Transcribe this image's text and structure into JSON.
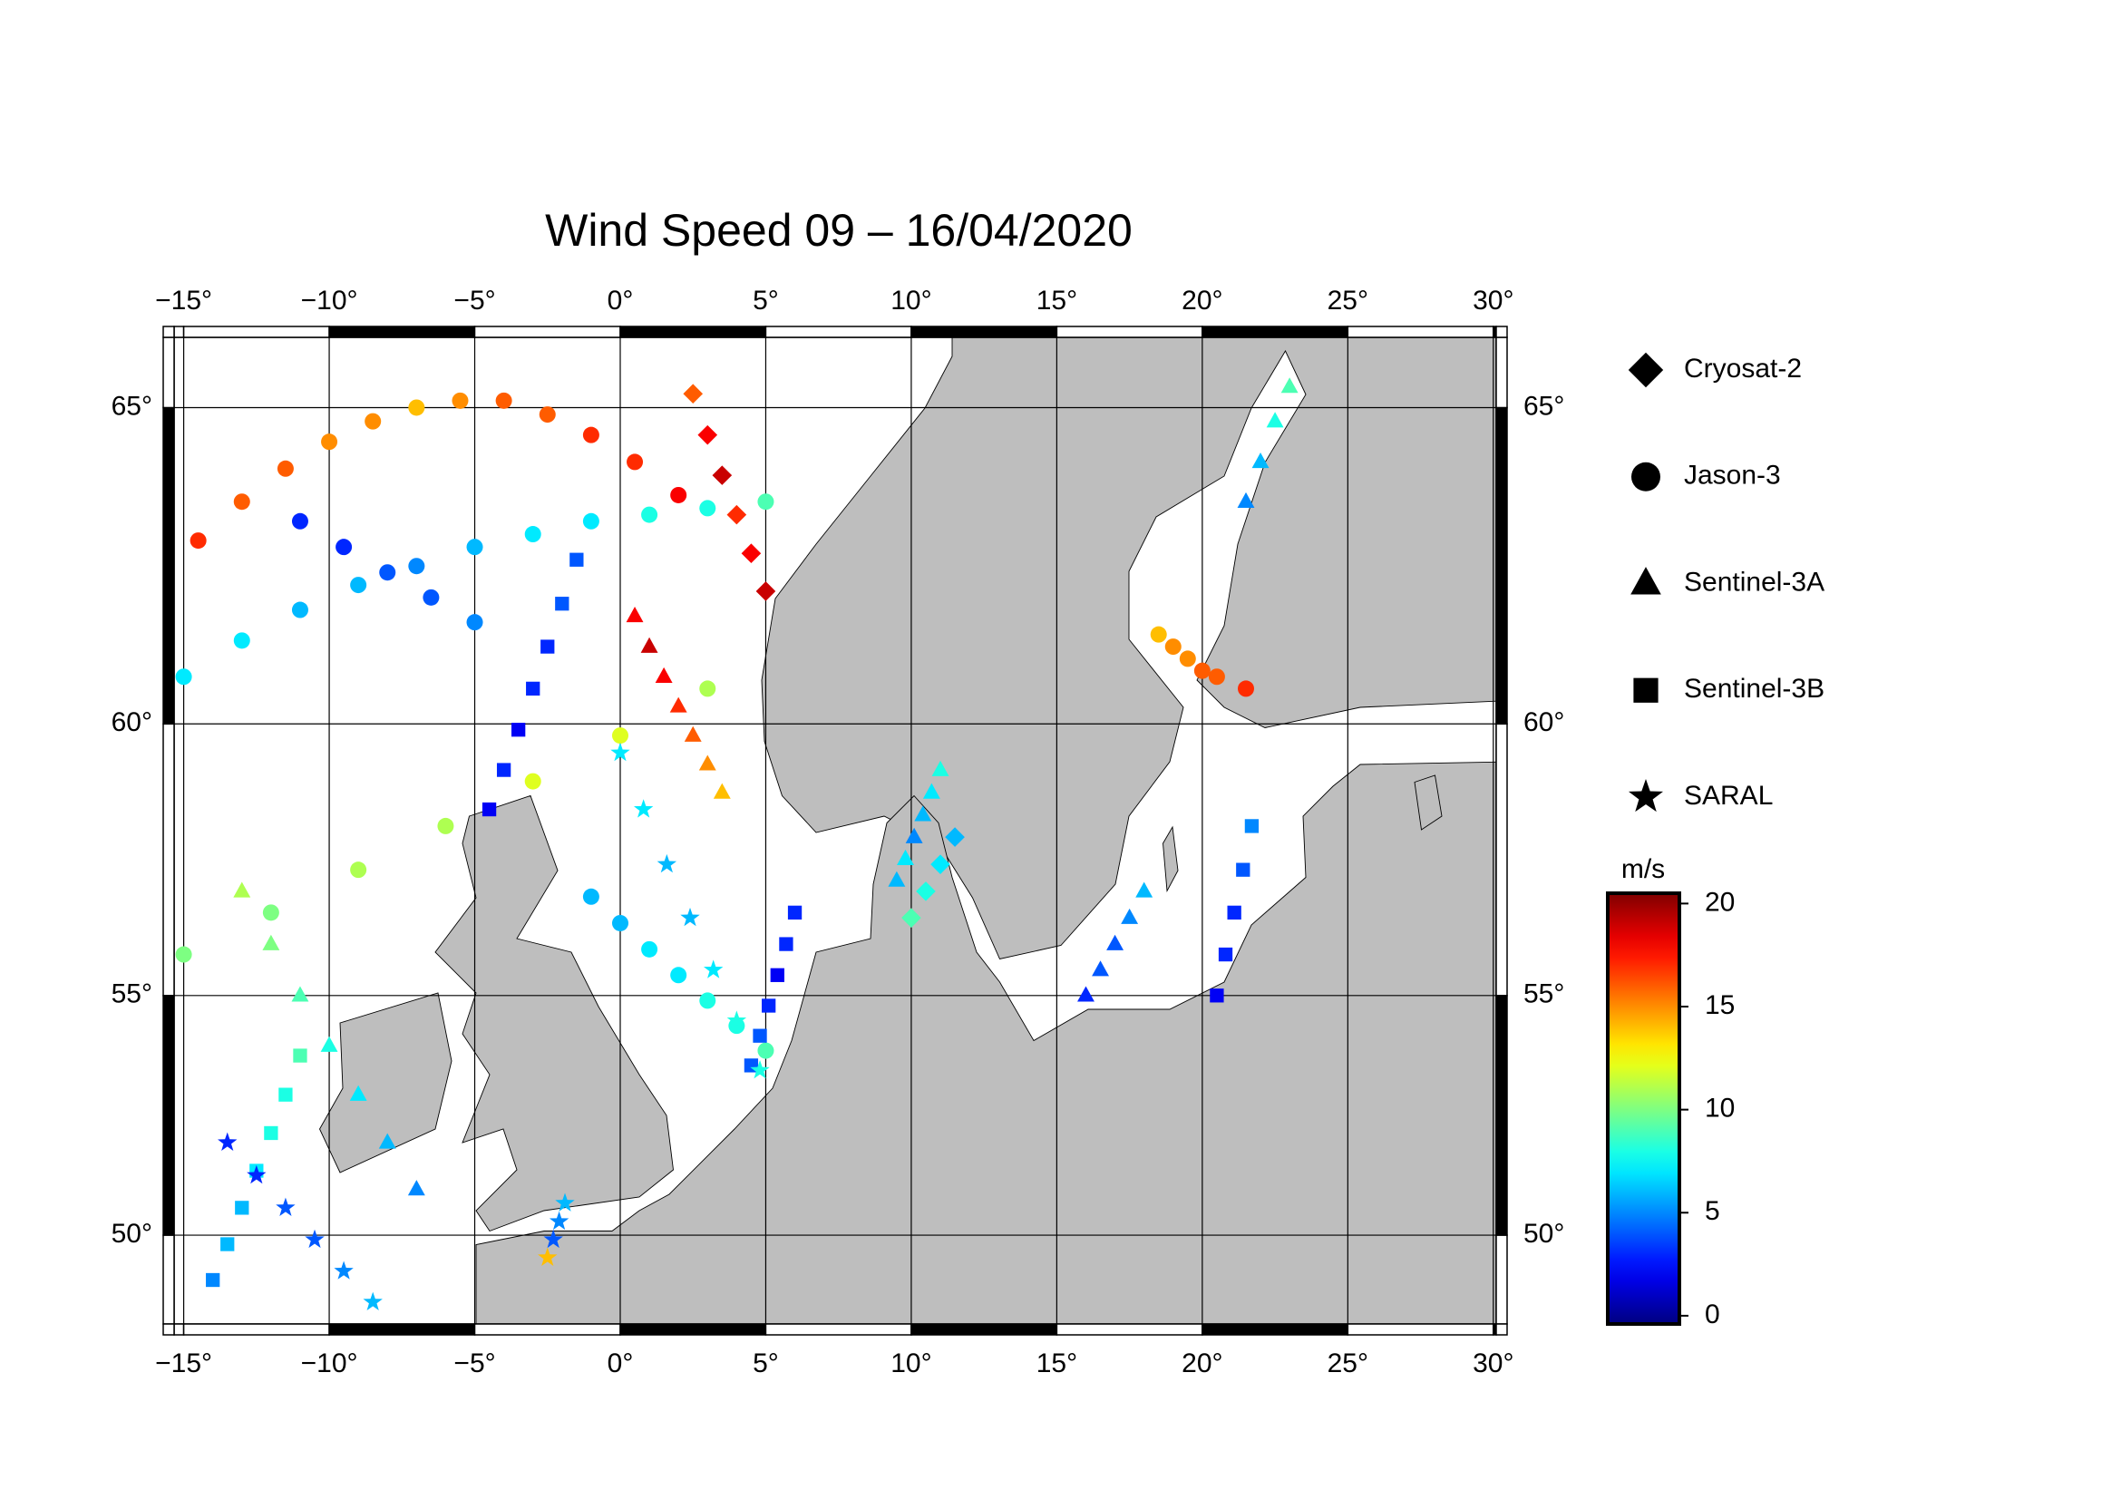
{
  "chart_data": {
    "type": "map",
    "title": "Wind Speed 09 – 16/04/2020",
    "projection": "mercator",
    "xlim": [
      -15.33,
      30.1
    ],
    "ylim": [
      48,
      66
    ],
    "xticks": [
      {
        "value": -15,
        "label": "−15°"
      },
      {
        "value": -10,
        "label": "−10°"
      },
      {
        "value": -5,
        "label": "−5°"
      },
      {
        "value": 0,
        "label": "0°"
      },
      {
        "value": 5,
        "label": "5°"
      },
      {
        "value": 10,
        "label": "10°"
      },
      {
        "value": 15,
        "label": "15°"
      },
      {
        "value": 20,
        "label": "20°"
      },
      {
        "value": 25,
        "label": "25°"
      },
      {
        "value": 30,
        "label": "30°"
      }
    ],
    "yticks": [
      {
        "value": 50,
        "label": "50°"
      },
      {
        "value": 55,
        "label": "55°"
      },
      {
        "value": 60,
        "label": "60°"
      },
      {
        "value": 65,
        "label": "65°"
      }
    ],
    "grid": true,
    "colormap": "jet",
    "colorbar": {
      "label": "m/s",
      "lim": [
        -0.4,
        20.5
      ],
      "ticks": [
        0,
        5,
        10,
        15,
        20
      ]
    },
    "series": [
      {
        "name": "Cryosat-2",
        "marker": "diamond",
        "tracks": [
          {
            "lon": [
              2.5,
              3,
              3.5,
              4,
              4.5,
              5
            ],
            "lat": [
              65.2,
              64.6,
              64.0,
              63.4,
              62.8,
              62.2
            ],
            "values": [
              16,
              18,
              19,
              17,
              18,
              19
            ]
          },
          {
            "lon": [
              10,
              10.5,
              11,
              11.5
            ],
            "lat": [
              56.5,
              57,
              57.5,
              58
            ],
            "values": [
              9,
              8,
              7,
              6
            ]
          }
        ]
      },
      {
        "name": "Jason-3",
        "marker": "circle",
        "tracks": [
          {
            "lon": [
              -14.5,
              -13,
              -11.5,
              -10,
              -8.5,
              -7,
              -5.5,
              -4,
              -2.5,
              -1,
              0.5,
              2
            ],
            "lat": [
              63.0,
              63.6,
              64.1,
              64.5,
              64.8,
              65.0,
              65.1,
              65.1,
              64.9,
              64.6,
              64.2,
              63.7
            ],
            "values": [
              17,
              16,
              16,
              15,
              15,
              14,
              15,
              16,
              16,
              17,
              17,
              18
            ]
          },
          {
            "lon": [
              -15,
              -13,
              -11,
              -9,
              -7,
              -5,
              -3,
              -1,
              1,
              3,
              5
            ],
            "lat": [
              60.8,
              61.4,
              61.9,
              62.3,
              62.6,
              62.9,
              63.1,
              63.3,
              63.4,
              63.5,
              63.6
            ],
            "values": [
              7,
              7,
              6,
              6,
              5,
              6,
              7,
              7,
              8,
              8,
              9
            ]
          },
          {
            "lon": [
              -15,
              -12,
              -9,
              -6,
              -3,
              0,
              3
            ],
            "lat": [
              55.8,
              56.6,
              57.4,
              58.2,
              59.0,
              59.8,
              60.6
            ],
            "values": [
              10,
              10,
              11,
              11,
              12,
              12,
              11
            ]
          },
          {
            "lon": [
              -11,
              -9.5,
              -8,
              -6.5,
              -5
            ],
            "lat": [
              63.3,
              62.9,
              62.5,
              62.1,
              61.7
            ],
            "values": [
              3,
              3,
              4,
              4,
              5
            ]
          },
          {
            "lon": [
              18.5,
              19,
              19.5,
              20,
              20.5,
              21.5
            ],
            "lat": [
              61.5,
              61.3,
              61.1,
              60.9,
              60.8,
              60.6
            ],
            "values": [
              14,
              15,
              15,
              16,
              16,
              17
            ]
          },
          {
            "lon": [
              -1,
              0,
              1,
              2,
              3,
              4,
              5
            ],
            "lat": [
              56.9,
              56.4,
              55.9,
              55.4,
              54.9,
              54.4,
              53.9
            ],
            "values": [
              6,
              6,
              7,
              7,
              8,
              8,
              9
            ]
          }
        ]
      },
      {
        "name": "Sentinel-3A",
        "marker": "triangle",
        "tracks": [
          {
            "lon": [
              0.5,
              1,
              1.5,
              2,
              2.5,
              3,
              3.5
            ],
            "lat": [
              61.8,
              61.3,
              60.8,
              60.3,
              59.8,
              59.3,
              58.8
            ],
            "values": [
              18,
              19,
              18,
              17,
              16,
              15,
              14
            ]
          },
          {
            "lon": [
              -13,
              -12,
              -11,
              -10,
              -9,
              -8,
              -7
            ],
            "lat": [
              57,
              56,
              55,
              54,
              53,
              52,
              51
            ],
            "values": [
              11,
              10,
              9,
              8,
              7,
              6,
              5
            ]
          },
          {
            "lon": [
              9.5,
              9.8,
              10.1,
              10.4,
              10.7,
              11
            ],
            "lat": [
              57.2,
              57.6,
              58,
              58.4,
              58.8,
              59.2
            ],
            "values": [
              6,
              7,
              5,
              6,
              7,
              8
            ]
          },
          {
            "lon": [
              16,
              16.5,
              17,
              17.5,
              18
            ],
            "lat": [
              55,
              55.5,
              56,
              56.5,
              57
            ],
            "values": [
              3,
              4,
              4,
              5,
              6
            ]
          },
          {
            "lon": [
              21.5,
              22,
              22.5,
              23
            ],
            "lat": [
              63.6,
              64.2,
              64.8,
              65.3
            ],
            "values": [
              5,
              6,
              8,
              9
            ]
          }
        ]
      },
      {
        "name": "Sentinel-3B",
        "marker": "square",
        "tracks": [
          {
            "lon": [
              -4.5,
              -4,
              -3.5,
              -3,
              -2.5,
              -2,
              -1.5
            ],
            "lat": [
              58.5,
              59.2,
              59.9,
              60.6,
              61.3,
              62,
              62.7
            ],
            "values": [
              2,
              3,
              2,
              3,
              3,
              4,
              4
            ]
          },
          {
            "lon": [
              6,
              5.7,
              5.4,
              5.1,
              4.8,
              4.5
            ],
            "lat": [
              56.6,
              56,
              55.4,
              54.8,
              54.2,
              53.6
            ],
            "values": [
              3,
              3,
              2,
              3,
              4,
              4
            ]
          },
          {
            "lon": [
              -14,
              -13.5,
              -13,
              -12.5,
              -12,
              -11.5,
              -11
            ],
            "lat": [
              49,
              49.8,
              50.6,
              51.4,
              52.2,
              53,
              53.8
            ],
            "values": [
              5,
              6,
              6,
              7,
              8,
              8,
              9
            ]
          },
          {
            "lon": [
              20.5,
              20.8,
              21.1,
              21.4,
              21.7
            ],
            "lat": [
              55,
              55.8,
              56.6,
              57.4,
              58.2
            ],
            "values": [
              2,
              3,
              3,
              4,
              5
            ]
          }
        ]
      },
      {
        "name": "SARAL",
        "marker": "star",
        "tracks": [
          {
            "lon": [
              0,
              0.8,
              1.6,
              2.4,
              3.2,
              4,
              4.8
            ],
            "lat": [
              59.5,
              58.5,
              57.5,
              56.5,
              55.5,
              54.5,
              53.5
            ],
            "values": [
              7,
              7,
              6,
              6,
              7,
              8,
              8
            ]
          },
          {
            "lon": [
              -13.5,
              -12.5,
              -11.5,
              -10.5,
              -9.5,
              -8.5
            ],
            "lat": [
              52,
              51.3,
              50.6,
              49.9,
              49.2,
              48.5
            ],
            "values": [
              3,
              3,
              4,
              4,
              5,
              6
            ]
          },
          {
            "lon": [
              -2.5,
              -2.3,
              -2.1,
              -1.9
            ],
            "lat": [
              49.5,
              49.9,
              50.3,
              50.7
            ],
            "values": [
              14,
              4,
              5,
              6
            ]
          }
        ]
      }
    ]
  }
}
